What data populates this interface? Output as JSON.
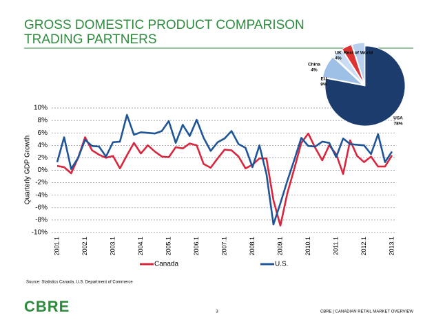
{
  "slide": {
    "title": [
      "GROSS DOMESTIC PRODUCT COMPARISON",
      "TRADING PARTNERS"
    ],
    "source": "Source: Statistics Canada, U.S. Department of Commerce",
    "logo": "CBRE",
    "page_number": "3",
    "footer": "CBRE | CANADIAN RETAIL MARKET OVERVIEW"
  },
  "chart_data": [
    {
      "type": "line",
      "y_label": "Quarterly GDP Growth",
      "categories": [
        "2001.1",
        null,
        null,
        null,
        "2002.1",
        null,
        null,
        null,
        "2003.1",
        null,
        null,
        null,
        "2004.1",
        null,
        null,
        null,
        "2005.1",
        null,
        null,
        null,
        "2006.1",
        null,
        null,
        null,
        "2007.1",
        null,
        null,
        null,
        "2008.1",
        null,
        null,
        null,
        "2009.1",
        null,
        null,
        null,
        "2010.1",
        null,
        null,
        null,
        "2011.1",
        null,
        null,
        null,
        "2012.1",
        null,
        null,
        null,
        "2013.1"
      ],
      "series": [
        {
          "name": "Canada",
          "color": "#d7263d",
          "values": [
            0.7,
            0.5,
            -0.5,
            2.0,
            5.3,
            3.2,
            2.5,
            2.0,
            2.3,
            0.3,
            2.4,
            4.4,
            2.7,
            4.0,
            3.0,
            2.2,
            2.1,
            3.7,
            3.5,
            4.3,
            4.0,
            1.0,
            0.4,
            1.9,
            3.3,
            3.2,
            2.2,
            0.3,
            0.9,
            1.9,
            1.9,
            -4.8,
            -8.9,
            -3.7,
            0.3,
            4.4,
            5.9,
            3.6,
            1.6,
            4.0,
            2.6,
            -0.6,
            4.8,
            2.3,
            1.3,
            2.2,
            0.6,
            0.6,
            2.4
          ]
        },
        {
          "name": "U.S.",
          "color": "#1f5596",
          "values": [
            1.3,
            5.3,
            0.2,
            2.0,
            4.9,
            3.9,
            3.8,
            2.2,
            4.5,
            4.6,
            8.9,
            5.7,
            6.1,
            6.0,
            5.9,
            6.3,
            7.9,
            4.4,
            7.3,
            5.5,
            8.1,
            5.2,
            3.1,
            4.5,
            5.1,
            6.3,
            4.2,
            3.6,
            0.5,
            4.0,
            -0.6,
            -8.7,
            -5.3,
            -1.7,
            1.7,
            5.2,
            3.9,
            3.8,
            4.6,
            4.4,
            2.1,
            5.1,
            4.2,
            4.1,
            4.0,
            2.6,
            5.8,
            1.3,
            3.0
          ]
        }
      ],
      "ylim": [
        -10,
        10
      ],
      "yticks": [
        {
          "value": 10,
          "label": "10%"
        },
        {
          "value": 8,
          "label": "8%"
        },
        {
          "value": 6,
          "label": "6%"
        },
        {
          "value": 4,
          "label": "4%"
        },
        {
          "value": 2,
          "label": "2%"
        },
        {
          "value": 0,
          "label": "0%"
        },
        {
          "value": -2,
          "label": "-2%"
        },
        {
          "value": -4,
          "label": "-4%"
        },
        {
          "value": -6,
          "label": "-6%"
        },
        {
          "value": -8,
          "label": "-8%"
        },
        {
          "value": -10,
          "label": "-10%"
        }
      ],
      "grid": true,
      "legend": "bottom"
    },
    {
      "type": "pie",
      "categories": [
        "USA",
        "EU",
        "China",
        "UK",
        "Rest of World"
      ],
      "values": [
        78,
        9,
        4,
        4,
        5
      ],
      "value_labels": [
        "78%",
        "9%",
        "4%",
        "4%",
        null
      ],
      "colors": [
        "#1d3c6e",
        "#9fc0e6",
        "#c9dcf2",
        "#d33",
        "#b8d0ee"
      ]
    }
  ]
}
